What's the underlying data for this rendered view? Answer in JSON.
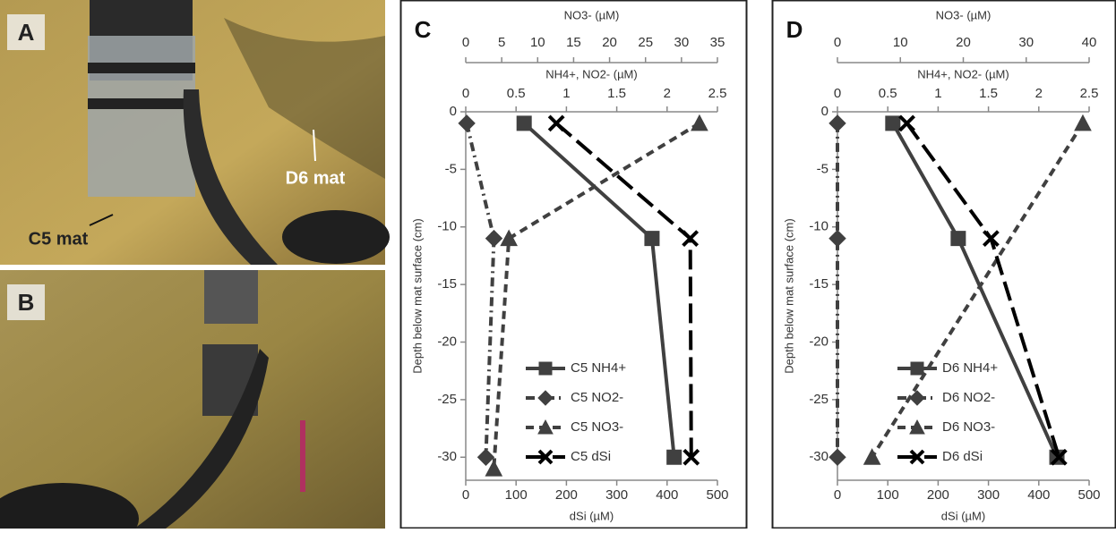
{
  "photos": [
    {
      "label": "A",
      "annotations": [
        "C5 mat",
        "D6 mat"
      ]
    },
    {
      "label": "B"
    }
  ],
  "chart_data": [
    {
      "type": "line",
      "panel": "C",
      "x3_label": "NO3- (µM)",
      "x3lim": [
        0,
        35
      ],
      "x3ticks": [
        0,
        5,
        10,
        15,
        20,
        25,
        30,
        35
      ],
      "x2_label": "NH4+, NO2- (µM)",
      "x2lim": [
        0,
        2.5
      ],
      "x2ticks": [
        0,
        0.5,
        1,
        1.5,
        2,
        2.5
      ],
      "xlabel": "dSi (µM)",
      "xlim": [
        0,
        500
      ],
      "xticks": [
        0,
        100,
        200,
        300,
        400,
        500
      ],
      "ylabel": "Depth below mat surface (cm)",
      "ylim": [
        -32,
        0
      ],
      "yticks": [
        -30,
        -25,
        -20,
        -15,
        -10,
        -5,
        0
      ],
      "legend": "lower center",
      "series": [
        {
          "name": "C5 NH4+",
          "axis": "x2",
          "color": "#404040",
          "marker": "square",
          "dash": "solid",
          "x": [
            0.58,
            1.85,
            2.07
          ],
          "y": [
            -1,
            -11,
            -30
          ]
        },
        {
          "name": "C5 NO2-",
          "axis": "x2",
          "color": "#404040",
          "marker": "diamond",
          "dash": "dashdot",
          "x": [
            0.01,
            0.28,
            0.2
          ],
          "y": [
            -1,
            -11,
            -30
          ]
        },
        {
          "name": "C5 NO3-",
          "axis": "x3",
          "color": "#404040",
          "marker": "triangle",
          "dash": "dashed",
          "x": [
            32.5,
            6.0,
            3.9
          ],
          "y": [
            -1,
            -11,
            -31
          ]
        },
        {
          "name": "C5 dSi",
          "axis": "x",
          "color": "#000000",
          "marker": "cross",
          "dash": "longdash",
          "x": [
            180,
            446,
            448
          ],
          "y": [
            -1,
            -11,
            -30
          ]
        }
      ]
    },
    {
      "type": "line",
      "panel": "D",
      "x3_label": "NO3- (µM)",
      "x3lim": [
        0,
        40
      ],
      "x3ticks": [
        0,
        10,
        20,
        30,
        40
      ],
      "x2_label": "NH4+, NO2- (µM)",
      "x2lim": [
        0,
        2.5
      ],
      "x2ticks": [
        0,
        0.5,
        1,
        1.5,
        2,
        2.5
      ],
      "xlabel": "dSi (µM)",
      "xlim": [
        0,
        500
      ],
      "xticks": [
        0,
        100,
        200,
        300,
        400,
        500
      ],
      "ylabel": "Depth below mat surface (cm)",
      "ylim": [
        -32,
        0
      ],
      "yticks": [
        -30,
        -25,
        -20,
        -15,
        -10,
        -5,
        0
      ],
      "legend": "lower center",
      "series": [
        {
          "name": "D6 NH4+",
          "axis": "x2",
          "color": "#404040",
          "marker": "square",
          "dash": "solid",
          "x": [
            0.55,
            1.2,
            2.18
          ],
          "y": [
            -1,
            -11,
            -30
          ]
        },
        {
          "name": "D6 NO2-",
          "axis": "x2",
          "color": "#404040",
          "marker": "diamond",
          "dash": "dashdot",
          "x": [
            0,
            0,
            0
          ],
          "y": [
            -1,
            -11,
            -30
          ]
        },
        {
          "name": "D6 NO3-",
          "axis": "x3",
          "color": "#404040",
          "marker": "triangle",
          "dash": "dashed",
          "x": [
            39,
            5.5
          ],
          "y": [
            -1,
            -30
          ]
        },
        {
          "name": "D6 dSi",
          "axis": "x",
          "color": "#000000",
          "marker": "cross",
          "dash": "longdash",
          "x": [
            138,
            305,
            440
          ],
          "y": [
            -1,
            -11,
            -30
          ]
        }
      ]
    }
  ]
}
